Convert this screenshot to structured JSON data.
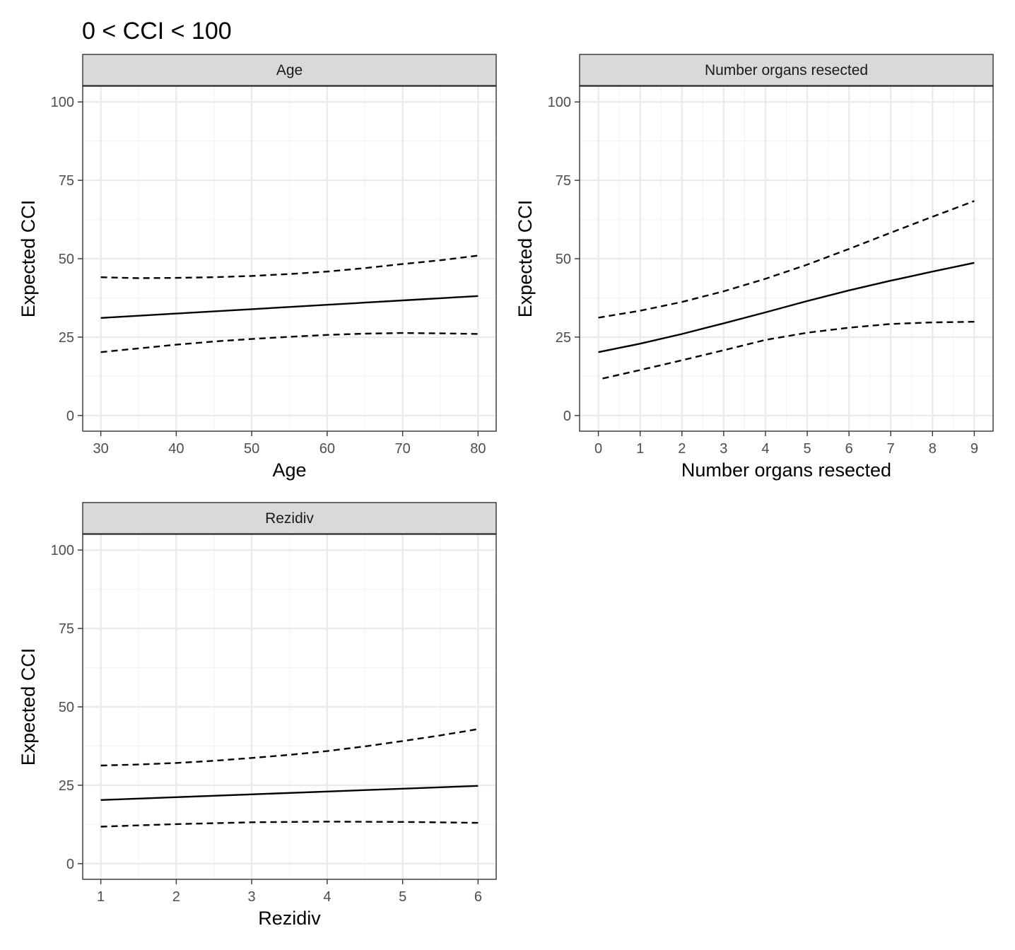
{
  "title": "0 < CCI < 100",
  "colors": {
    "strip_fill": "#d9d9d9",
    "panel_border": "#333333",
    "grid_major": "#ebebeb",
    "grid_minor": "#f4f4f4",
    "line": "#000000"
  },
  "chart_data": [
    {
      "type": "line",
      "facet": "Age",
      "xlabel": "Age",
      "ylabel": "Expected CCI",
      "xlim": [
        27.6,
        82.4
      ],
      "ylim": [
        -5,
        105
      ],
      "x_ticks": [
        30,
        40,
        50,
        60,
        70,
        80
      ],
      "y_ticks": [
        0,
        25,
        50,
        75,
        100
      ],
      "grid": true,
      "series": [
        {
          "role": "estimate",
          "style": "solid",
          "x": [
            30,
            40,
            50,
            60,
            70,
            80
          ],
          "values": [
            31.1,
            32.5,
            33.9,
            35.3,
            36.7,
            38.1
          ]
        },
        {
          "role": "upper",
          "style": "dashed",
          "x": [
            30,
            35,
            40,
            45,
            50,
            55,
            60,
            65,
            70,
            75,
            80
          ],
          "values": [
            44.1,
            43.8,
            43.9,
            44.1,
            44.5,
            45.1,
            45.9,
            47.0,
            48.3,
            49.5,
            51.0
          ]
        },
        {
          "role": "lower",
          "style": "dashed",
          "x": [
            30,
            35,
            40,
            45,
            50,
            55,
            60,
            65,
            70,
            75,
            80
          ],
          "values": [
            20.2,
            21.4,
            22.6,
            23.6,
            24.4,
            25.1,
            25.7,
            26.1,
            26.3,
            26.2,
            26.0
          ]
        }
      ]
    },
    {
      "type": "line",
      "facet": "Number organs resected",
      "xlabel": "Number organs resected",
      "ylabel": "Expected CCI",
      "xlim": [
        -0.45,
        9.45
      ],
      "ylim": [
        -5,
        105
      ],
      "x_ticks": [
        0,
        1,
        2,
        3,
        4,
        5,
        6,
        7,
        8,
        9
      ],
      "y_ticks": [
        0,
        25,
        50,
        75,
        100
      ],
      "grid": true,
      "series": [
        {
          "role": "estimate",
          "style": "solid",
          "x": [
            0,
            1,
            2,
            3,
            4,
            5,
            6,
            7,
            8,
            9
          ],
          "values": [
            20.2,
            22.9,
            26.0,
            29.4,
            32.9,
            36.5,
            39.9,
            43.0,
            45.9,
            48.7
          ]
        },
        {
          "role": "upper",
          "style": "dashed",
          "x": [
            0,
            1,
            2,
            3,
            4,
            5,
            6,
            7,
            8,
            9
          ],
          "values": [
            31.2,
            33.4,
            36.2,
            39.6,
            43.6,
            48.1,
            53.1,
            58.3,
            63.4,
            68.4
          ]
        },
        {
          "role": "lower",
          "style": "dashed",
          "x": [
            0.1,
            1,
            2,
            3,
            4,
            5,
            6,
            7,
            8,
            9
          ],
          "values": [
            11.8,
            14.5,
            17.6,
            20.8,
            24.1,
            26.4,
            28.0,
            29.2,
            29.7,
            29.9
          ]
        }
      ]
    },
    {
      "type": "line",
      "facet": "Rezidiv",
      "xlabel": "Rezidiv",
      "ylabel": "Expected CCI",
      "xlim": [
        0.76,
        6.24
      ],
      "ylim": [
        -5,
        105
      ],
      "x_ticks": [
        1,
        2,
        3,
        4,
        5,
        6
      ],
      "y_ticks": [
        0,
        25,
        50,
        75,
        100
      ],
      "grid": true,
      "series": [
        {
          "role": "estimate",
          "style": "solid",
          "x": [
            1,
            2,
            3,
            4,
            5,
            6
          ],
          "values": [
            20.3,
            21.2,
            22.1,
            23.0,
            23.9,
            24.8
          ]
        },
        {
          "role": "upper",
          "style": "dashed",
          "x": [
            1,
            1.5,
            2,
            2.5,
            3,
            3.5,
            4,
            4.5,
            5,
            5.5,
            6
          ],
          "values": [
            31.3,
            31.6,
            32.1,
            32.8,
            33.7,
            34.7,
            35.9,
            37.4,
            39.1,
            40.9,
            42.9
          ]
        },
        {
          "role": "lower",
          "style": "dashed",
          "x": [
            1,
            2,
            3,
            4,
            5,
            6
          ],
          "values": [
            11.8,
            12.6,
            13.2,
            13.4,
            13.3,
            13.0
          ]
        }
      ]
    }
  ]
}
